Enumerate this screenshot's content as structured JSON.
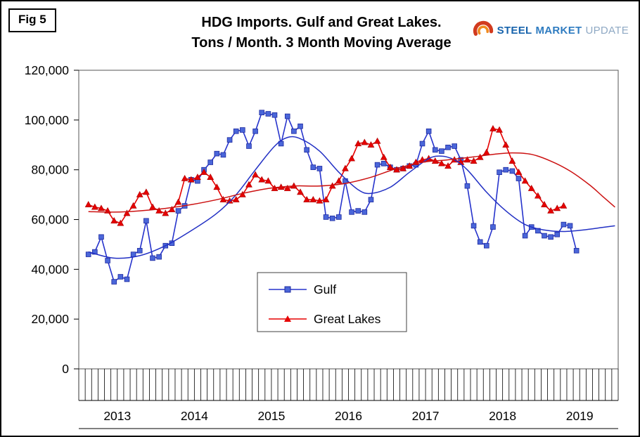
{
  "figure_label": "Fig 5",
  "title": {
    "line1": "HDG Imports. Gulf and Great Lakes.",
    "line2": "Tons / Month. 3 Month Moving Average"
  },
  "logo": {
    "word1": "STEEL",
    "word2": "MARKET",
    "word3": "UPDATE"
  },
  "chart_data": {
    "type": "line",
    "title": "HDG Imports. Gulf and Great Lakes. Tons / Month. 3 Month Moving Average",
    "x_unit": "month",
    "x_range_months": [
      "2013-01",
      "2019-12"
    ],
    "years": [
      "2013",
      "2014",
      "2015",
      "2016",
      "2017",
      "2018",
      "2019"
    ],
    "ylim": [
      0,
      120000
    ],
    "y_ticks": [
      0,
      20000,
      40000,
      60000,
      80000,
      100000,
      120000
    ],
    "grid": false,
    "legend": {
      "position": "inside-bottom-center",
      "entries": [
        "Gulf",
        "Great Lakes"
      ]
    },
    "series": [
      {
        "name": "Gulf",
        "color": "#2633CC",
        "marker": "square",
        "marker_fill": "#4A66D9",
        "marker_edge": "#1E2AA0",
        "start": "2013-02",
        "start_index": 1,
        "values": [
          46000,
          47000,
          53000,
          43500,
          35000,
          37000,
          36000,
          46000,
          47500,
          59500,
          44500,
          45000,
          49500,
          50500,
          63500,
          65500,
          76000,
          75500,
          80000,
          83000,
          86500,
          86000,
          92000,
          95500,
          96000,
          89500,
          95500,
          103000,
          102500,
          102000,
          90500,
          101500,
          95500,
          97500,
          88000,
          81000,
          80500,
          61000,
          60500,
          61000,
          75500,
          63000,
          63500,
          63000,
          68000,
          82000,
          82500,
          81000,
          80000,
          80500,
          81500,
          82000,
          90500,
          95500,
          88000,
          87500,
          89000,
          89500,
          84000,
          73500,
          57500,
          51000,
          49500,
          57000,
          79000,
          80000,
          79500,
          76500,
          53500,
          57000,
          55500,
          53500,
          53000,
          54000,
          58000,
          57500,
          47500
        ]
      },
      {
        "name": "Great Lakes",
        "color": "#E60000",
        "marker": "triangle",
        "marker_fill": "#E60000",
        "marker_edge": "#A80000",
        "start": "2013-02",
        "start_index": 1,
        "values": [
          66000,
          65000,
          64500,
          63500,
          59500,
          58500,
          62500,
          65500,
          70000,
          71000,
          65000,
          63500,
          62500,
          64000,
          67000,
          76500,
          76000,
          77000,
          79000,
          77000,
          73000,
          68000,
          67500,
          68000,
          70000,
          74000,
          78000,
          76000,
          75500,
          72500,
          73000,
          72500,
          73500,
          71000,
          68000,
          68000,
          67500,
          68000,
          73500,
          75500,
          80500,
          84500,
          90500,
          91000,
          90000,
          91500,
          85000,
          81000,
          80000,
          80500,
          81500,
          83000,
          84000,
          84500,
          83500,
          82500,
          81500,
          84000,
          83000,
          84000,
          83500,
          85000,
          87000,
          96500,
          96000,
          90000,
          83500,
          79000,
          75500,
          72500,
          69500,
          66000,
          63500,
          64500,
          65500
        ]
      }
    ],
    "trendlines": [
      {
        "name": "Gulf trend",
        "color": "#2230C4",
        "points": [
          [
            1,
            47000
          ],
          [
            5,
            44500
          ],
          [
            9,
            45500
          ],
          [
            13,
            49500
          ],
          [
            17,
            55500
          ],
          [
            21,
            62500
          ],
          [
            24,
            70000
          ],
          [
            27,
            80000
          ],
          [
            30,
            89500
          ],
          [
            32,
            93000
          ],
          [
            34,
            92500
          ],
          [
            37,
            87500
          ],
          [
            40,
            79000
          ],
          [
            43,
            72000
          ],
          [
            45,
            70500
          ],
          [
            48,
            73000
          ],
          [
            51,
            79000
          ],
          [
            54,
            84500
          ],
          [
            56,
            85500
          ],
          [
            58,
            84000
          ],
          [
            60,
            80000
          ],
          [
            63,
            71000
          ],
          [
            66,
            63500
          ],
          [
            69,
            58000
          ],
          [
            72,
            55800
          ],
          [
            75,
            55200
          ],
          [
            78,
            55800
          ],
          [
            81,
            56800
          ],
          [
            83,
            57500
          ]
        ]
      },
      {
        "name": "Great Lakes trend",
        "color": "#CC1111",
        "points": [
          [
            1,
            63200
          ],
          [
            5,
            63000
          ],
          [
            9,
            63500
          ],
          [
            13,
            64500
          ],
          [
            17,
            66000
          ],
          [
            21,
            68000
          ],
          [
            25,
            70500
          ],
          [
            29,
            72500
          ],
          [
            33,
            73500
          ],
          [
            37,
            73500
          ],
          [
            41,
            74500
          ],
          [
            45,
            77000
          ],
          [
            49,
            80500
          ],
          [
            53,
            83000
          ],
          [
            57,
            84000
          ],
          [
            61,
            85200
          ],
          [
            64,
            86200
          ],
          [
            67,
            86800
          ],
          [
            70,
            86200
          ],
          [
            73,
            83500
          ],
          [
            76,
            79500
          ],
          [
            79,
            74000
          ],
          [
            81,
            69500
          ],
          [
            83,
            65000
          ]
        ]
      }
    ]
  }
}
